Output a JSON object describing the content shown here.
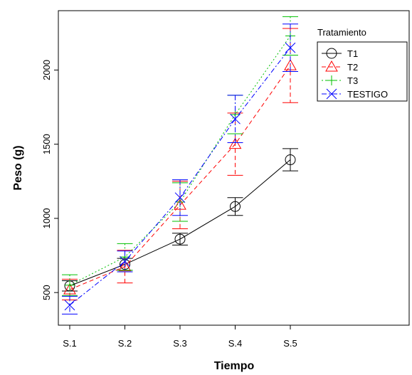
{
  "chart_data": {
    "type": "line",
    "title": "",
    "xlabel": "Tiempo",
    "ylabel": "Peso (g)",
    "categories": [
      "S.1",
      "S.2",
      "S.3",
      "S.4",
      "S.5"
    ],
    "ylim": [
      280,
      2400
    ],
    "yticks": [
      500,
      1000,
      1500,
      2000
    ],
    "grid": false,
    "legend": {
      "title": "Tratamiento",
      "position": "top-right"
    },
    "series": [
      {
        "name": "T1",
        "color": "#000000",
        "dash": "solid",
        "marker": "circle",
        "values": [
          545,
          690,
          860,
          1080,
          1395
        ],
        "err": [
          35,
          40,
          40,
          60,
          75
        ]
      },
      {
        "name": "T2",
        "color": "#ff0000",
        "dash": "dashed",
        "marker": "triangle",
        "values": [
          520,
          675,
          1090,
          1500,
          2030
        ],
        "err": [
          70,
          110,
          160,
          210,
          250
        ]
      },
      {
        "name": "T3",
        "color": "#00c000",
        "dash": "dotted",
        "marker": "plus",
        "values": [
          550,
          740,
          1110,
          1700,
          2230
        ],
        "err": [
          70,
          90,
          130,
          130,
          130
        ]
      },
      {
        "name": "TESTIGO",
        "color": "#0000ff",
        "dash": "dashdot",
        "marker": "x",
        "values": [
          415,
          710,
          1140,
          1670,
          2150
        ],
        "err": [
          60,
          70,
          120,
          160,
          160
        ]
      }
    ]
  }
}
